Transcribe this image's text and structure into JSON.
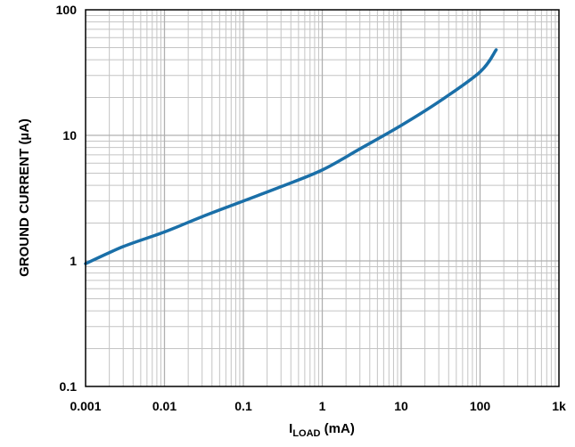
{
  "chart_data": {
    "type": "line",
    "title": "",
    "xlabel": {
      "main": "I",
      "sub": "LOAD",
      "unit": " (mA)"
    },
    "ylabel": "GROUND CURRENT (µA)",
    "x_scale": "log",
    "y_scale": "log",
    "xlim": [
      0.001,
      1000
    ],
    "ylim": [
      0.1,
      100
    ],
    "grid": true,
    "x_ticks": [
      0.001,
      0.01,
      0.1,
      1,
      10,
      100,
      1000
    ],
    "x_tick_labels": [
      "0.001",
      "0.01",
      "0.1",
      "1",
      "10",
      "100",
      "1k"
    ],
    "y_ticks": [
      0.1,
      1,
      10,
      100
    ],
    "y_tick_labels": [
      "0.1",
      "1",
      "10",
      "100"
    ],
    "series": [
      {
        "color": "#1a6fa8",
        "x": [
          0.001,
          0.003,
          0.01,
          0.03,
          0.1,
          0.3,
          1,
          3,
          10,
          30,
          100,
          160
        ],
        "y": [
          0.95,
          1.3,
          1.7,
          2.25,
          3.0,
          3.9,
          5.3,
          7.8,
          12.0,
          18.5,
          32.0,
          48.0
        ]
      }
    ]
  }
}
